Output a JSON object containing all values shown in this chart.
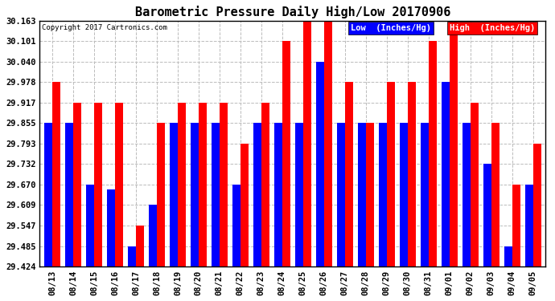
{
  "title": "Barometric Pressure Daily High/Low 20170906",
  "copyright": "Copyright 2017 Cartronics.com",
  "legend_low": "Low  (Inches/Hg)",
  "legend_high": "High  (Inches/Hg)",
  "dates": [
    "08/13",
    "08/14",
    "08/15",
    "08/16",
    "08/17",
    "08/18",
    "08/19",
    "08/20",
    "08/21",
    "08/22",
    "08/23",
    "08/24",
    "08/25",
    "08/26",
    "08/27",
    "08/28",
    "08/29",
    "08/30",
    "08/31",
    "09/01",
    "09/02",
    "09/03",
    "09/04",
    "09/05"
  ],
  "low_values": [
    29.855,
    29.855,
    29.67,
    29.655,
    29.485,
    29.609,
    29.855,
    29.855,
    29.855,
    29.67,
    29.855,
    29.855,
    29.855,
    30.04,
    29.855,
    29.855,
    29.855,
    29.855,
    29.855,
    29.978,
    29.855,
    29.732,
    29.485,
    29.67
  ],
  "high_values": [
    29.978,
    29.917,
    29.917,
    29.917,
    29.547,
    29.855,
    29.917,
    29.917,
    29.917,
    29.793,
    29.917,
    30.101,
    30.163,
    30.163,
    29.978,
    29.855,
    29.978,
    29.978,
    30.101,
    30.163,
    29.917,
    29.855,
    29.67,
    29.793
  ],
  "ymin": 29.424,
  "ymax": 30.163,
  "yticks": [
    29.424,
    29.485,
    29.547,
    29.609,
    29.67,
    29.732,
    29.793,
    29.855,
    29.917,
    29.978,
    30.04,
    30.101,
    30.163
  ],
  "bar_color_low": "#0000ff",
  "bar_color_high": "#ff0000",
  "background_color": "#ffffff",
  "grid_color": "#bbbbbb",
  "title_fontsize": 11,
  "tick_fontsize": 7.5,
  "legend_fontsize": 7.5
}
